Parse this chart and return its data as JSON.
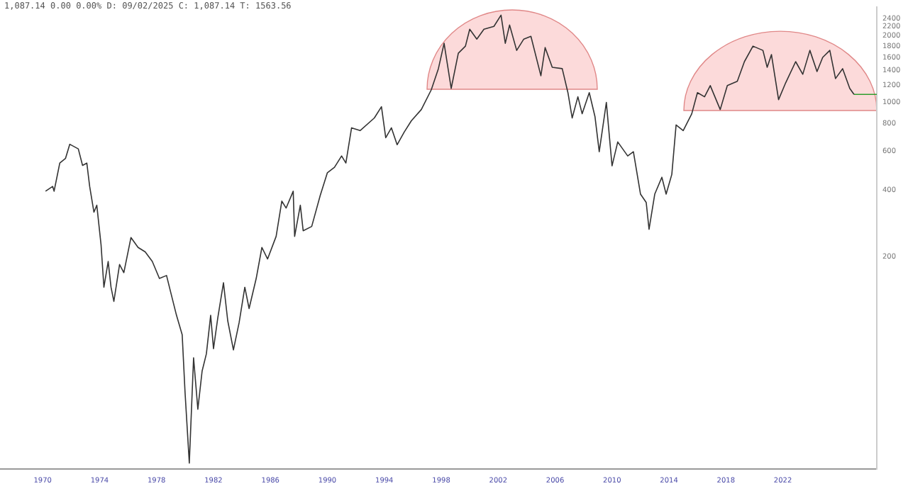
{
  "chart_data": {
    "type": "line",
    "title": "1,087.14 0.00 0.00% D: 09/02/2025 C: 1,087.14 T: 1563.56",
    "log": "y",
    "marker": "none",
    "xlim": [
      1967,
      2028.6
    ],
    "xticks": [
      1970,
      1974,
      1978,
      1982,
      1986,
      1990,
      1994,
      1998,
      2002,
      2006,
      2010,
      2014,
      2018,
      2022
    ],
    "ylim": [
      22,
      2700
    ],
    "yticks": [
      200,
      400,
      600,
      800,
      1000,
      1200,
      1400,
      1600,
      1800,
      2000,
      2200,
      2400
    ],
    "series": [
      {
        "color": "#333333",
        "x": [
          1970.2,
          1970.7,
          1970.8,
          1971.2,
          1971.6,
          1971.9,
          1972.5,
          1972.8,
          1973.1,
          1973.3,
          1973.6,
          1973.8,
          1974.1,
          1974.3,
          1974.6,
          1974.8,
          1975.0,
          1975.4,
          1975.7,
          1976.2,
          1976.7,
          1977.2,
          1977.7,
          1978.2,
          1978.7,
          1979.0,
          1979.4,
          1979.8,
          1980.0,
          1980.3,
          1980.6,
          1980.9,
          1981.2,
          1981.5,
          1981.8,
          1982.0,
          1982.3,
          1982.7,
          1983.0,
          1983.4,
          1983.8,
          1984.2,
          1984.5,
          1985.0,
          1985.4,
          1985.8,
          1986.4,
          1986.8,
          1987.1,
          1987.6,
          1987.7,
          1988.1,
          1988.3,
          1988.9,
          1989.5,
          1990.0,
          1990.5,
          1991.0,
          1991.3,
          1991.7,
          1992.3,
          1993.3,
          1993.8,
          1994.1,
          1994.5,
          1994.9,
          1995.4,
          1995.9,
          1996.6,
          1997.3,
          1997.8,
          1998.2,
          1998.7,
          1999.2,
          1999.7,
          2000.0,
          2000.5,
          2001.0,
          2001.7,
          2002.2,
          2002.5,
          2002.8,
          2003.3,
          2003.8,
          2004.3,
          2005.0,
          2005.3,
          2005.8,
          2006.5,
          2006.9,
          2007.2,
          2007.6,
          2007.9,
          2008.4,
          2008.8,
          2009.1,
          2009.6,
          2010.0,
          2010.4,
          2011.1,
          2011.5,
          2012.0,
          2012.4,
          2012.6,
          2013.0,
          2013.5,
          2013.8,
          2014.2,
          2014.5,
          2015.0,
          2015.6,
          2016.0,
          2016.5,
          2016.9,
          2017.6,
          2018.1,
          2018.8,
          2019.3,
          2019.9,
          2020.6,
          2020.9,
          2021.2,
          2021.7,
          2022.2,
          2022.9,
          2023.4,
          2023.9,
          2024.4,
          2024.8,
          2025.3,
          2025.7,
          2026.2,
          2026.7,
          2027.0
        ],
        "values": [
          397,
          417,
          397,
          532,
          558,
          647,
          617,
          519,
          532,
          417,
          319,
          343,
          227,
          146,
          191,
          146,
          126,
          185,
          170,
          245,
          221,
          211,
          191,
          160,
          165,
          138,
          109,
          89,
          49,
          23.4,
          70,
          41,
          61,
          73,
          109,
          77,
          106,
          153,
          103,
          76,
          101,
          146,
          117,
          160,
          221,
          196,
          248,
          358,
          333,
          397,
          248,
          343,
          263,
          275,
          380,
          481,
          509,
          573,
          532,
          768,
          746,
          851,
          957,
          693,
          768,
          644,
          735,
          826,
          929,
          1141,
          1422,
          1852,
          1158,
          1670,
          1798,
          2143,
          1935,
          2143,
          2208,
          2483,
          1852,
          2240,
          1720,
          1935,
          1991,
          1321,
          1771,
          1442,
          1422,
          1108,
          851,
          1061,
          889,
          1108,
          864,
          599,
          1000,
          517,
          663,
          573,
          599,
          385,
          353,
          267,
          385,
          459,
          385,
          473,
          791,
          746,
          889,
          1108,
          1061,
          1192,
          929,
          1192,
          1246,
          1530,
          1798,
          1720,
          1442,
          1646,
          1030,
          1228,
          1530,
          1341,
          1720,
          1380,
          1599,
          1720,
          1283,
          1422,
          1158,
          1087.14
        ]
      },
      {
        "color": "#2e9e2e",
        "x": [
          2027.0,
          2028.6
        ],
        "values": [
          1087.14,
          1087.14
        ]
      }
    ]
  }
}
